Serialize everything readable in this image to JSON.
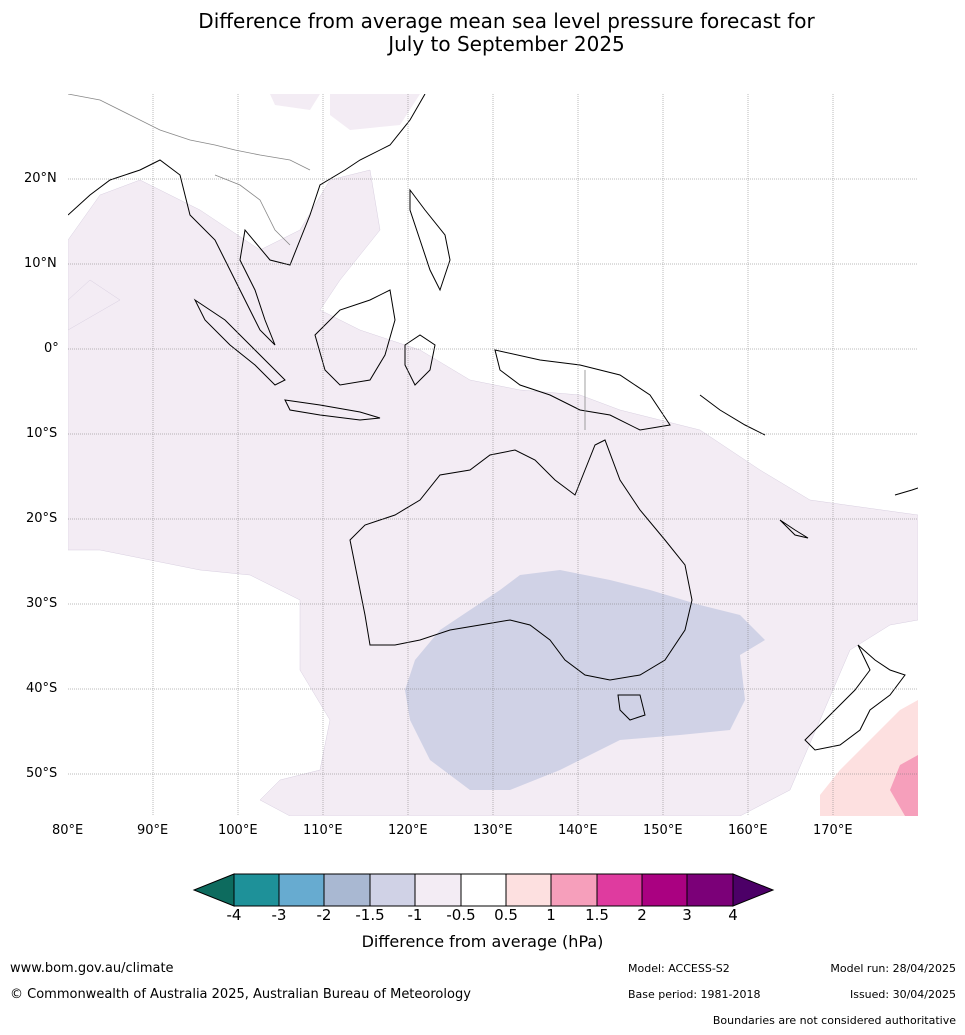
{
  "title": {
    "line1": "Difference from average mean sea level pressure forecast for",
    "line2": "July to September 2025"
  },
  "map": {
    "lat_labels": [
      "20°N",
      "10°N",
      "0°",
      "10°S",
      "20°S",
      "30°S",
      "40°S",
      "50°S"
    ],
    "lon_labels": [
      "80°E",
      "90°E",
      "100°E",
      "110°E",
      "120°E",
      "130°E",
      "140°E",
      "150°E",
      "160°E",
      "170°E"
    ],
    "extent": {
      "lon": [
        80,
        180
      ],
      "lat": [
        -55,
        30
      ]
    },
    "gridlines": true
  },
  "colorbar": {
    "title": "Difference from average (hPa)",
    "ticks": [
      "-4",
      "-3",
      "-2",
      "-1.5",
      "-1",
      "-0.5",
      "0.5",
      "1",
      "1.5",
      "2",
      "3",
      "4"
    ],
    "colors": [
      "#0d6b5e",
      "#1e9199",
      "#67abd0",
      "#a9b8d2",
      "#d0d2e6",
      "#f3ecf4",
      "#ffffff",
      "#fde0e0",
      "#f69fbb",
      "#df3b9f",
      "#aa0181",
      "#7b0078",
      "#4c0067"
    ]
  },
  "footer": {
    "url": "www.bom.gov.au/climate",
    "copyright": "© Commonwealth of Australia 2025, Australian Bureau of Meteorology",
    "model": "Model: ACCESS-S2",
    "base_period": "Base period: 1981-2018",
    "model_run": "Model run: 28/04/2025",
    "issued": "Issued: 30/04/2025",
    "disclaimer": "Boundaries are not considered authoritative"
  }
}
